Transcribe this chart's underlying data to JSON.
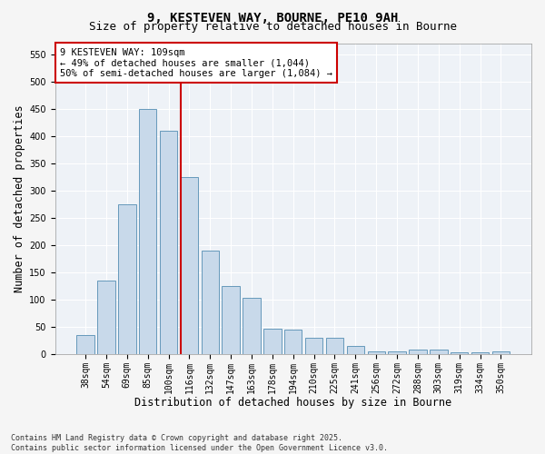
{
  "title_line1": "9, KESTEVEN WAY, BOURNE, PE10 9AH",
  "title_line2": "Size of property relative to detached houses in Bourne",
  "xlabel": "Distribution of detached houses by size in Bourne",
  "ylabel": "Number of detached properties",
  "categories": [
    "38sqm",
    "54sqm",
    "69sqm",
    "85sqm",
    "100sqm",
    "116sqm",
    "132sqm",
    "147sqm",
    "163sqm",
    "178sqm",
    "194sqm",
    "210sqm",
    "225sqm",
    "241sqm",
    "256sqm",
    "272sqm",
    "288sqm",
    "303sqm",
    "319sqm",
    "334sqm",
    "350sqm"
  ],
  "values": [
    35,
    135,
    275,
    450,
    410,
    325,
    190,
    125,
    103,
    47,
    45,
    30,
    30,
    15,
    5,
    5,
    9,
    9,
    4,
    3,
    5
  ],
  "bar_color": "#c8d9ea",
  "bar_edge_color": "#6699bb",
  "vline_color": "#cc0000",
  "vline_x": 4.6,
  "annotation_line1": "9 KESTEVEN WAY: 109sqm",
  "annotation_line2": "← 49% of detached houses are smaller (1,044)",
  "annotation_line3": "50% of semi-detached houses are larger (1,084) →",
  "box_edge_color": "#cc0000",
  "ylim": [
    0,
    570
  ],
  "yticks": [
    0,
    50,
    100,
    150,
    200,
    250,
    300,
    350,
    400,
    450,
    500,
    550
  ],
  "plot_bg_color": "#eef2f7",
  "fig_bg_color": "#f5f5f5",
  "grid_color": "#ffffff",
  "footer": "Contains HM Land Registry data © Crown copyright and database right 2025.\nContains public sector information licensed under the Open Government Licence v3.0.",
  "title_fontsize": 10,
  "subtitle_fontsize": 9,
  "axis_label_fontsize": 8.5,
  "tick_fontsize": 7,
  "annotation_fontsize": 7.5,
  "footer_fontsize": 6
}
